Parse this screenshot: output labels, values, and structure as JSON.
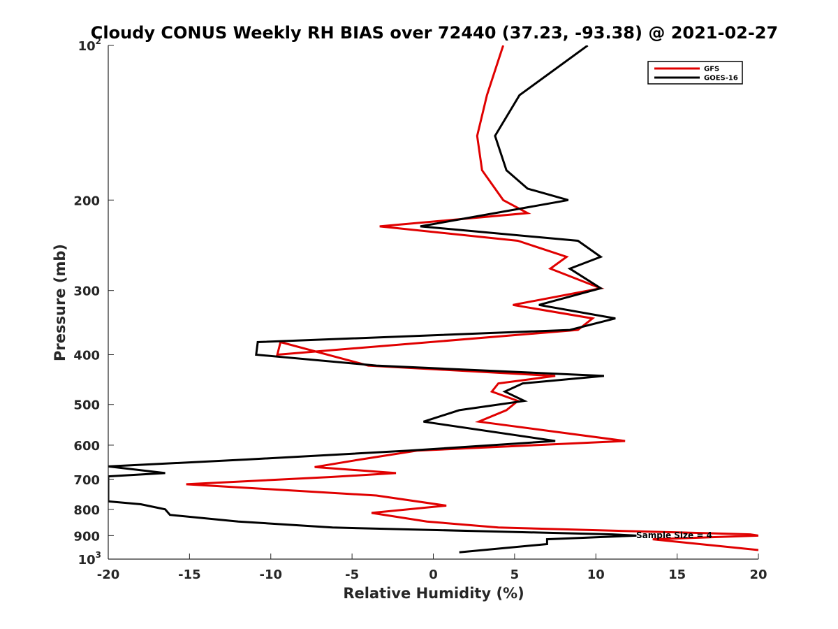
{
  "chart_data": {
    "type": "line",
    "title": "Cloudy CONUS Weekly RH BIAS over 72440 (37.23, -93.38) @ 2021-02-27",
    "xlabel": "Relative Humidity (%)",
    "ylabel": "Pressure (mb)",
    "xlim": [
      -20,
      20
    ],
    "ylim": [
      100,
      1000
    ],
    "y_scale": "log",
    "y_reversed": true,
    "x_ticks": [
      "-20",
      "-15",
      "-10",
      "-5",
      "0",
      "5",
      "10",
      "15",
      "20"
    ],
    "y_ticks": [
      {
        "value": 100,
        "base": "10",
        "exp": "2"
      },
      {
        "value": 200,
        "label": "200"
      },
      {
        "value": 300,
        "label": "300"
      },
      {
        "value": 400,
        "label": "400"
      },
      {
        "value": 500,
        "label": "500"
      },
      {
        "value": 600,
        "label": "600"
      },
      {
        "value": 700,
        "label": "700"
      },
      {
        "value": 800,
        "label": "800"
      },
      {
        "value": 900,
        "label": "900"
      },
      {
        "value": 1000,
        "base": "10",
        "exp": "3"
      }
    ],
    "grid": false,
    "legend_position": "top-right",
    "annotation": "Sample Size = 4",
    "series": [
      {
        "name": "GFS",
        "color": "#e00000",
        "points": [
          [
            4.3,
            100
          ],
          [
            3.3,
            125
          ],
          [
            2.7,
            150
          ],
          [
            3.0,
            175
          ],
          [
            4.3,
            200
          ],
          [
            5.8,
            212
          ],
          [
            -3.3,
            225
          ],
          [
            5.2,
            240
          ],
          [
            8.2,
            258
          ],
          [
            7.2,
            272
          ],
          [
            10.3,
            297
          ],
          [
            4.9,
            320
          ],
          [
            9.8,
            340
          ],
          [
            8.9,
            358
          ],
          [
            -9.6,
            400
          ],
          [
            -9.4,
            378
          ],
          [
            -4.0,
            420
          ],
          [
            7.5,
            440
          ],
          [
            4.0,
            455
          ],
          [
            3.6,
            472
          ],
          [
            5.2,
            492
          ],
          [
            4.5,
            513
          ],
          [
            2.8,
            540
          ],
          [
            11.8,
            589
          ],
          [
            -1.0,
            615
          ],
          [
            -4.5,
            640
          ],
          [
            -7.3,
            662
          ],
          [
            -2.3,
            680
          ],
          [
            -6.3,
            692
          ],
          [
            -15.2,
            715
          ],
          [
            -3.5,
            752
          ],
          [
            0.8,
            787
          ],
          [
            -3.8,
            813
          ],
          [
            -0.4,
            845
          ],
          [
            4.0,
            868
          ],
          [
            19.5,
            895
          ],
          [
            20.0,
            900
          ],
          [
            13.5,
            915
          ],
          [
            20.0,
            960
          ]
        ]
      },
      {
        "name": "GOES-16",
        "color": "#000000",
        "points": [
          [
            9.5,
            100
          ],
          [
            5.3,
            125
          ],
          [
            3.8,
            150
          ],
          [
            4.5,
            175
          ],
          [
            5.8,
            190
          ],
          [
            8.3,
            200
          ],
          [
            -0.8,
            225
          ],
          [
            8.9,
            240
          ],
          [
            10.3,
            258
          ],
          [
            8.4,
            272
          ],
          [
            10.3,
            297
          ],
          [
            6.5,
            320
          ],
          [
            11.2,
            340
          ],
          [
            8.4,
            358
          ],
          [
            -10.8,
            378
          ],
          [
            -10.9,
            400
          ],
          [
            -3.5,
            420
          ],
          [
            10.5,
            440
          ],
          [
            5.5,
            455
          ],
          [
            4.4,
            472
          ],
          [
            5.6,
            492
          ],
          [
            1.6,
            513
          ],
          [
            -0.6,
            540
          ],
          [
            7.5,
            589
          ],
          [
            -1.5,
            615
          ],
          [
            -11.5,
            640
          ],
          [
            -20.0,
            660
          ],
          [
            -16.5,
            680
          ],
          [
            -20.0,
            690
          ],
          [
            -20.0,
            772
          ],
          [
            -18.0,
            782
          ],
          [
            -16.5,
            800
          ],
          [
            -16.2,
            820
          ],
          [
            -12.0,
            845
          ],
          [
            -6.2,
            868
          ],
          [
            11.0,
            895
          ],
          [
            12.5,
            900
          ],
          [
            7.0,
            915
          ],
          [
            7.0,
            935
          ],
          [
            1.6,
            970
          ]
        ]
      }
    ]
  }
}
